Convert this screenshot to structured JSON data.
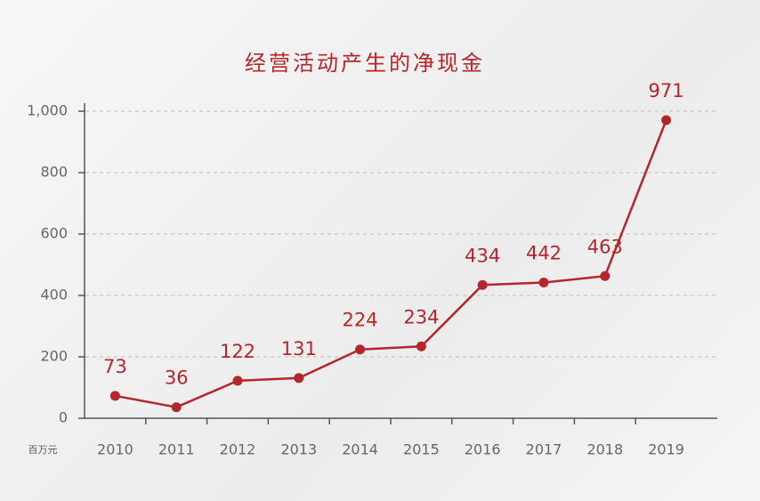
{
  "chart_data": {
    "type": "line",
    "title": "经营活动产生的净现金",
    "unit_label": "百万元",
    "categories": [
      "2010",
      "2011",
      "2012",
      "2013",
      "2014",
      "2015",
      "2016",
      "2017",
      "2018",
      "2019"
    ],
    "values": [
      73,
      36,
      122,
      131,
      224,
      234,
      434,
      442,
      463,
      971
    ],
    "color": "#b5262c",
    "ylim": [
      0,
      1000
    ],
    "yticks": [
      0,
      200,
      400,
      600,
      800,
      {
        "value": 1000,
        "label": "1,000"
      }
    ],
    "grid": true
  }
}
